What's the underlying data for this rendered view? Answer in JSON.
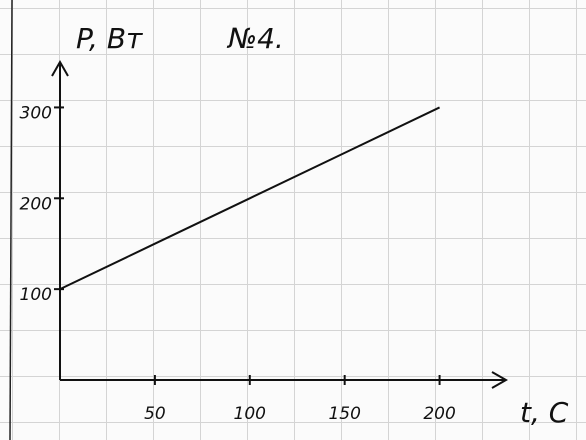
{
  "chart_data": {
    "type": "line",
    "title": "№4.",
    "y_label": "P, Вт",
    "x_label": "t, C",
    "x": [
      0,
      50,
      100,
      150,
      200
    ],
    "values": [
      100,
      150,
      200,
      250,
      300
    ],
    "color": "#111111",
    "xlim": [
      0,
      235
    ],
    "ylim": [
      0,
      350
    ],
    "xticks": [
      50,
      100,
      150,
      200
    ],
    "yticks": [
      100,
      200,
      300
    ]
  }
}
